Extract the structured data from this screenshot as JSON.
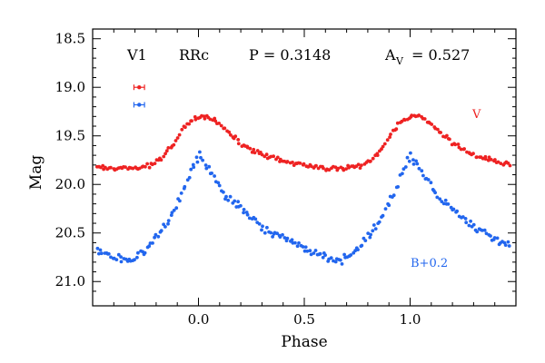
{
  "chart_data": {
    "type": "scatter",
    "title": "",
    "xlabel": "Phase",
    "ylabel": "Mag",
    "xlim": [
      -0.5,
      1.5
    ],
    "ylim": [
      21.25,
      18.4
    ],
    "y_inverted": true,
    "x_ticks": [
      {
        "value": 0.0,
        "label": "0.0"
      },
      {
        "value": 0.5,
        "label": "0.5"
      },
      {
        "value": 1.0,
        "label": "1.0"
      }
    ],
    "y_ticks": [
      {
        "value": 18.5,
        "label": "18.5"
      },
      {
        "value": 19.0,
        "label": "19.0"
      },
      {
        "value": 19.5,
        "label": "19.5"
      },
      {
        "value": 20.0,
        "label": "20.0"
      },
      {
        "value": 20.5,
        "label": "20.5"
      },
      {
        "value": 21.0,
        "label": "21.0"
      }
    ],
    "info": {
      "star": "V1",
      "type": "RRc",
      "period": "P = 0.3148",
      "amp_symbol": "A",
      "amp_sub": "V",
      "amp_value": "= 0.527"
    },
    "error_bars": [
      {
        "series": "V",
        "x": -0.28,
        "y": 19.0,
        "err": 0.025
      },
      {
        "series": "B+0.2",
        "x": -0.28,
        "y": 19.18,
        "err": 0.025
      }
    ],
    "series": [
      {
        "name": "V",
        "label": "V",
        "color": "#ee2222",
        "curve": [
          [
            0.0,
            19.3
          ],
          [
            0.05,
            19.3
          ],
          [
            0.12,
            19.42
          ],
          [
            0.2,
            19.58
          ],
          [
            0.3,
            19.7
          ],
          [
            0.4,
            19.76
          ],
          [
            0.5,
            19.8
          ],
          [
            0.6,
            19.84
          ],
          [
            0.7,
            19.83
          ],
          [
            0.77,
            19.8
          ],
          [
            0.82,
            19.74
          ],
          [
            0.87,
            19.62
          ],
          [
            0.92,
            19.45
          ],
          [
            0.96,
            19.35
          ],
          [
            1.0,
            19.3
          ]
        ],
        "scatter": 0.035
      },
      {
        "name": "B+0.2",
        "label": "B+0.2",
        "color": "#2266ee",
        "curve": [
          [
            0.0,
            19.7
          ],
          [
            0.05,
            19.85
          ],
          [
            0.12,
            20.1
          ],
          [
            0.2,
            20.25
          ],
          [
            0.3,
            20.45
          ],
          [
            0.4,
            20.55
          ],
          [
            0.5,
            20.65
          ],
          [
            0.6,
            20.75
          ],
          [
            0.68,
            20.78
          ],
          [
            0.74,
            20.7
          ],
          [
            0.8,
            20.55
          ],
          [
            0.85,
            20.4
          ],
          [
            0.9,
            20.2
          ],
          [
            0.95,
            19.95
          ],
          [
            1.0,
            19.7
          ]
        ],
        "scatter": 0.06
      }
    ]
  }
}
